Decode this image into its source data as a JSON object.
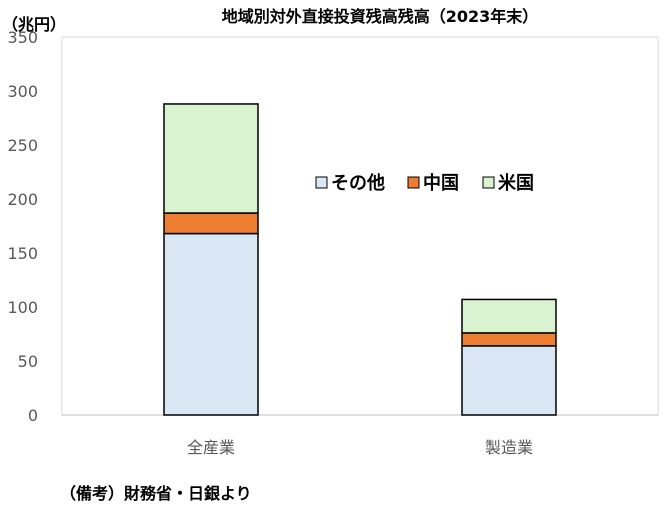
{
  "chart_data": {
    "type": "bar",
    "stacked": true,
    "title": "地域別対外直接投資残高残高（2023年末）",
    "ylabel": "（兆円）",
    "xlabel": "",
    "ylim": [
      0,
      350
    ],
    "yticks": [
      0,
      50,
      100,
      150,
      200,
      250,
      300,
      350
    ],
    "categories": [
      "全産業",
      "製造業"
    ],
    "series": [
      {
        "name": "その他",
        "values": [
          168,
          64
        ],
        "color": "#dae8f5"
      },
      {
        "name": "中国",
        "values": [
          19,
          12
        ],
        "color": "#ed7d31"
      },
      {
        "name": "米国",
        "values": [
          101,
          31
        ],
        "color": "#d9f2d0"
      }
    ],
    "grid": false,
    "legend_position": "center-right",
    "bar_edge_color": "#000000"
  },
  "note": "（備考）財務省・日銀より"
}
